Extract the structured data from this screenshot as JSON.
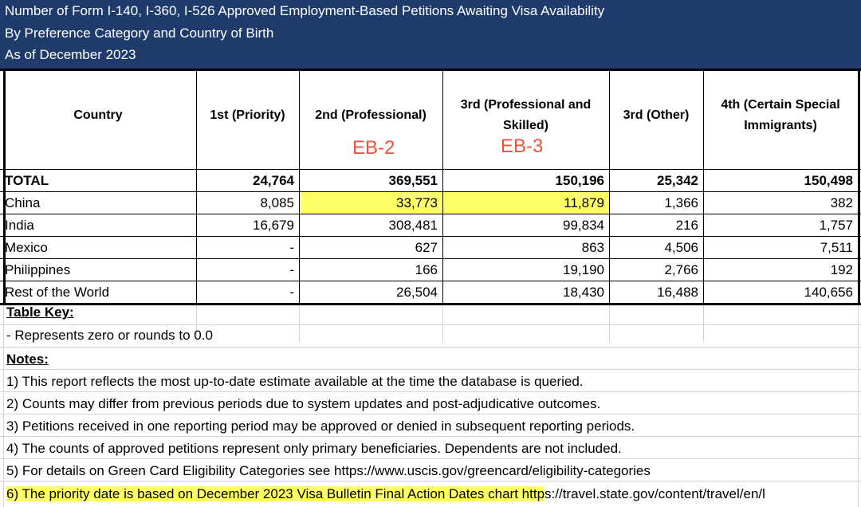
{
  "title_lines": [
    "Number of Form I-140, I-360, I-526 Approved Employment-Based Petitions Awaiting Visa Availability",
    "By Preference Category and Country of Birth",
    "As of December 2023"
  ],
  "columns": [
    "Country",
    "1st (Priority)",
    "2nd (Professional)",
    "3rd (Professional and Skilled)",
    "3rd (Other)",
    "4th (Certain Special Immigrants)"
  ],
  "annotations": {
    "eb2": "EB-2",
    "eb3": "EB-3"
  },
  "rows": [
    {
      "country": "TOTAL",
      "values": [
        "24,764",
        "369,551",
        "150,196",
        "25,342",
        "150,498"
      ]
    },
    {
      "country": "China",
      "values": [
        "8,085",
        "33,773",
        "11,879",
        "1,366",
        "382"
      ]
    },
    {
      "country": "India",
      "values": [
        "16,679",
        "308,481",
        "99,834",
        "216",
        "1,757"
      ]
    },
    {
      "country": "Mexico",
      "values": [
        "-",
        "627",
        "863",
        "4,506",
        "7,511"
      ]
    },
    {
      "country": "Philippines",
      "values": [
        "-",
        "166",
        "19,190",
        "2,766",
        "192"
      ]
    },
    {
      "country": "Rest of the World",
      "values": [
        "-",
        "26,504",
        "18,430",
        "16,488",
        "140,656"
      ]
    }
  ],
  "table_key": {
    "heading": "Table Key:",
    "items": [
      "- Represents zero or rounds to 0.0"
    ]
  },
  "notes": {
    "heading": "Notes:",
    "items": [
      "1) This report reflects the most up-to-date estimate available at the time the database is queried.",
      "2) Counts may differ from previous periods due to system updates and post-adjudicative outcomes.",
      "3) Petitions received in one reporting period may be approved or denied in subsequent reporting periods.",
      "4) The counts of approved petitions represent only primary beneficiaries. Dependents are not included.",
      "5) For details on Green Card Eligibility Categories see https://www.uscis.gov/greencard/eligibility-categories",
      "6) The priority date is based on December 2023 Visa Bulletin Final Action Dates chart https://travel.state.gov/content/travel/en/l"
    ],
    "highlighted_part_6": "6) The priority date is based on December 2023 Visa Bulletin Final Action Dates chart http",
    "rest_part_6": "s://travel.state.gov/content/travel/en/l"
  },
  "colors": {
    "header_bg": "#1f3b6c",
    "highlight": "#ffff66",
    "annotation": "#e8533a"
  }
}
